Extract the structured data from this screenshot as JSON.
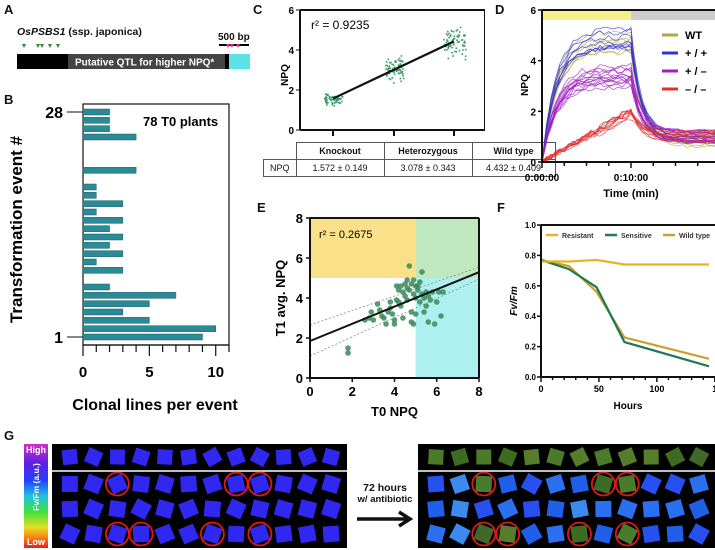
{
  "panels": {
    "A": {
      "label": "A",
      "gene": "OsPSBS1",
      "subtitle": "(ssp. japonica)",
      "scale_bar": "500 bp",
      "qtl_label": "Putative QTL for higher NPQ*",
      "colors": {
        "gene_body": "#000000",
        "qtl": "#444444",
        "utr": "#5ce1e6",
        "green_marker": "#2e8b2e",
        "pink_marker": "#d6337a"
      },
      "green_markers": 5,
      "pink_markers": 3
    },
    "B": {
      "label": "B"
    },
    "C": {
      "label": "C"
    },
    "D": {
      "label": "D"
    },
    "E": {
      "label": "E"
    },
    "F": {
      "label": "F"
    },
    "G": {
      "label": "G",
      "colorbar_high": "High",
      "colorbar_low": "Low",
      "colorbar_label": "Fv/Fm (a.u.)",
      "arrow_text_1": "72 hours",
      "arrow_text_2": "w/ antibiotic",
      "rows": 4,
      "cols": 12,
      "circled_before": [
        [
          1,
          2
        ],
        [
          1,
          7
        ],
        [
          1,
          8
        ],
        [
          3,
          2
        ],
        [
          3,
          3
        ],
        [
          3,
          6
        ],
        [
          3,
          8
        ]
      ],
      "circled_after": [
        [
          1,
          2
        ],
        [
          1,
          7
        ],
        [
          1,
          8
        ],
        [
          3,
          2
        ],
        [
          3,
          3
        ],
        [
          3,
          6
        ],
        [
          3,
          8
        ]
      ]
    }
  },
  "chart_data": [
    {
      "id": "B",
      "type": "bar",
      "orientation": "horizontal",
      "annotation": "78 T0 plants",
      "xlabel": "Clonal lines per event",
      "ylabel": "Transformation event #",
      "xlim": [
        0,
        11
      ],
      "xticks": [
        "0",
        "5",
        "10"
      ],
      "yticks": [
        "1",
        "28"
      ],
      "categories": [
        1,
        2,
        3,
        4,
        5,
        6,
        7,
        8,
        9,
        10,
        11,
        12,
        13,
        14,
        15,
        16,
        17,
        18,
        19,
        20,
        21,
        22,
        23,
        24,
        25,
        26,
        27,
        28
      ],
      "values": [
        9,
        10,
        5,
        3,
        5,
        7,
        2,
        0,
        3,
        1,
        3,
        2,
        3,
        2,
        3,
        1,
        3,
        1,
        1,
        0,
        4,
        0,
        0,
        0,
        4,
        2,
        2,
        2
      ],
      "color": "#2a8a96"
    },
    {
      "id": "C",
      "type": "scatter",
      "ylabel": "NPQ",
      "ylim": [
        0,
        6
      ],
      "yticks": [
        "0",
        "2",
        "4",
        "6"
      ],
      "annotation": "r² = 0.9235",
      "categories": [
        "Knockout",
        "Heterozygous",
        "Wild type"
      ],
      "means": [
        1.572,
        3.078,
        4.432
      ],
      "sds": [
        0.149,
        0.343,
        0.409
      ],
      "table_row_label": "NPQ",
      "table_values": [
        "1.572 ± 0.149",
        "3.078 ± 0.343",
        "4.432 ± 0.409"
      ],
      "color": "#3a9a6a"
    },
    {
      "id": "D",
      "type": "line",
      "ylabel": "NPQ",
      "xlabel": "Time (min)",
      "ylim": [
        0,
        6
      ],
      "yticks": [
        "0",
        "2",
        "4",
        "6"
      ],
      "xticks": [
        "0:00:00",
        "0:10:00",
        "0:2"
      ],
      "light_bar": {
        "on": "#f5f08a",
        "off": "#cccccc"
      },
      "series": [
        {
          "name": "WT",
          "color": "#b5a642",
          "peak": 4.7,
          "end": 0.8,
          "n": 6
        },
        {
          "name": "+ / +",
          "color": "#3333cc",
          "peak": 4.9,
          "end": 1.0,
          "n": 8
        },
        {
          "name": "+ / –",
          "color": "#a020c0",
          "peak": 3.4,
          "end": 1.0,
          "n": 14
        },
        {
          "name": "– / –",
          "color": "#e03030",
          "peak": 1.9,
          "end": 1.0,
          "n": 10
        }
      ]
    },
    {
      "id": "E",
      "type": "scatter",
      "xlabel": "T0 NPQ",
      "ylabel": "T1 avg. NPQ",
      "xlim": [
        0,
        8
      ],
      "ylim": [
        0,
        8
      ],
      "xticks": [
        "0",
        "2",
        "4",
        "6",
        "8"
      ],
      "yticks": [
        "0",
        "2",
        "4",
        "6",
        "8"
      ],
      "annotation": "r² = 0.2675",
      "fit": {
        "intercept": 1.85,
        "slope": 0.43
      },
      "quadrants": {
        "top_left": "#fbe08a",
        "top_right": "#bfe8bf",
        "bottom_right": "#aef0f0"
      },
      "threshold_x": 5,
      "threshold_y": 5,
      "points": [
        [
          1.8,
          1.5
        ],
        [
          1.8,
          1.25
        ],
        [
          2.6,
          2.9
        ],
        [
          2.8,
          3.0
        ],
        [
          2.9,
          3.3
        ],
        [
          3.0,
          2.9
        ],
        [
          3.2,
          3.7
        ],
        [
          3.3,
          3.4
        ],
        [
          3.4,
          3.1
        ],
        [
          3.5,
          3.0
        ],
        [
          3.6,
          2.7
        ],
        [
          3.7,
          3.3
        ],
        [
          3.8,
          3.8
        ],
        [
          3.9,
          3.2
        ],
        [
          4.0,
          2.9
        ],
        [
          4.0,
          2.7
        ],
        [
          4.1,
          4.6
        ],
        [
          4.1,
          3.9
        ],
        [
          4.2,
          4.4
        ],
        [
          4.3,
          4.6
        ],
        [
          4.3,
          3.6
        ],
        [
          4.4,
          4.3
        ],
        [
          4.5,
          4.7
        ],
        [
          4.5,
          4.1
        ],
        [
          4.6,
          4.5
        ],
        [
          4.6,
          3.9
        ],
        [
          4.7,
          4.4
        ],
        [
          4.7,
          5.6
        ],
        [
          4.8,
          4.7
        ],
        [
          4.8,
          3.3
        ],
        [
          4.9,
          4.9
        ],
        [
          4.9,
          4.2
        ],
        [
          5.0,
          4.6
        ],
        [
          5.0,
          4.0
        ],
        [
          5.0,
          3.2
        ],
        [
          5.1,
          4.4
        ],
        [
          5.2,
          4.8
        ],
        [
          5.2,
          3.8
        ],
        [
          5.3,
          4.2
        ],
        [
          5.3,
          5.3
        ],
        [
          5.4,
          4.0
        ],
        [
          5.5,
          4.3
        ],
        [
          5.5,
          3.6
        ],
        [
          5.6,
          4.1
        ],
        [
          5.6,
          2.8
        ],
        [
          5.7,
          3.9
        ],
        [
          5.8,
          4.3
        ],
        [
          5.9,
          2.7
        ],
        [
          6.0,
          3.8
        ],
        [
          6.1,
          4.3
        ],
        [
          6.2,
          3.1
        ],
        [
          6.3,
          4.3
        ],
        [
          4.8,
          2.8
        ],
        [
          4.9,
          2.7
        ],
        [
          4.4,
          3.0
        ],
        [
          3.8,
          3.5
        ],
        [
          4.2,
          3.8
        ],
        [
          4.6,
          4.9
        ],
        [
          5.1,
          4.6
        ],
        [
          5.4,
          3.3
        ]
      ],
      "color": "#3a8a5a"
    },
    {
      "id": "F",
      "type": "line",
      "xlabel": "Hours",
      "ylabel": "Fv/Fm",
      "xlim": [
        0,
        145
      ],
      "ylim": [
        0,
        1.0
      ],
      "xticks": [
        "0",
        "50",
        "100",
        "1"
      ],
      "yticks": [
        "0.0",
        "0.2",
        "0.4",
        "0.6",
        "0.8",
        "1.0"
      ],
      "x": [
        0,
        24,
        48,
        72,
        145
      ],
      "series": [
        {
          "name": "Resistant",
          "color": "#e6b422",
          "values": [
            0.76,
            0.76,
            0.77,
            0.74,
            0.74
          ]
        },
        {
          "name": "Sensitive",
          "color": "#1f7a55",
          "values": [
            0.77,
            0.71,
            0.59,
            0.23,
            0.07
          ]
        },
        {
          "name": "Wild type",
          "color": "#c9a030",
          "values": [
            0.77,
            0.73,
            0.56,
            0.26,
            0.12
          ]
        }
      ]
    }
  ]
}
